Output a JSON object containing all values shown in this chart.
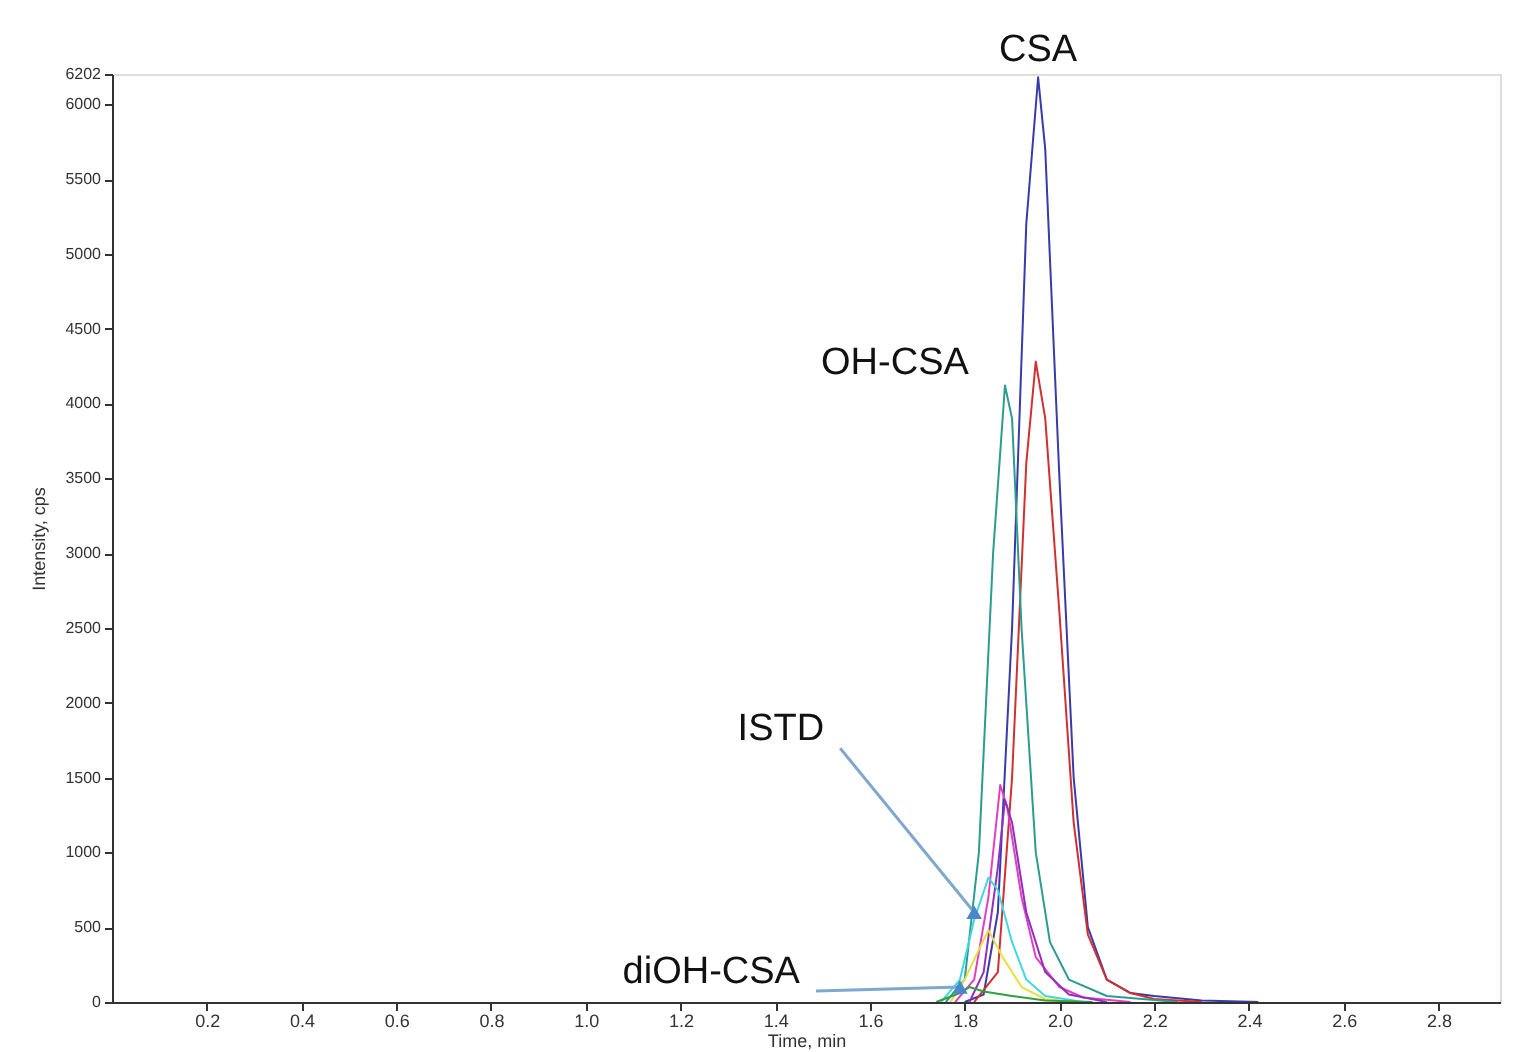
{
  "chart_data": {
    "type": "line",
    "xlabel": "Time, min",
    "ylabel": "Intensity, cps",
    "xlim": [
      0,
      2.93
    ],
    "ylim": [
      0,
      6202
    ],
    "xticks": [
      0.2,
      0.4,
      0.6,
      0.8,
      {
        "value": 1,
        "label": "1.0"
      },
      1.2,
      1.4,
      1.6,
      1.8,
      {
        "value": 2,
        "label": "2.0"
      },
      2.2,
      2.4,
      2.6,
      2.8
    ],
    "yticks": [
      0,
      500,
      1000,
      1500,
      2000,
      2500,
      3000,
      3500,
      4000,
      4500,
      5000,
      5500,
      6000,
      6202
    ],
    "grid": false,
    "marker": "none",
    "line_style": "solid",
    "series": [
      {
        "color": "#3a3aa8",
        "x": [
          1.8,
          1.84,
          1.87,
          1.9,
          1.93,
          1.955,
          1.97,
          2.0,
          2.03,
          2.06,
          2.1,
          2.15,
          2.2,
          2.3,
          2.42
        ],
        "values": [
          0,
          50,
          600,
          2500,
          5200,
          6180,
          5700,
          3500,
          1500,
          500,
          150,
          60,
          40,
          10,
          0
        ]
      },
      {
        "color": "#d03030",
        "x": [
          1.82,
          1.87,
          1.9,
          1.93,
          1.95,
          1.97,
          2.0,
          2.03,
          2.06,
          2.1,
          2.15,
          2.2,
          2.3
        ],
        "values": [
          0,
          200,
          1500,
          3600,
          4280,
          3900,
          2600,
          1200,
          450,
          150,
          60,
          20,
          0
        ]
      },
      {
        "color": "#2a9d8f",
        "x": [
          1.76,
          1.8,
          1.83,
          1.86,
          1.885,
          1.9,
          1.92,
          1.95,
          1.98,
          2.02,
          2.1,
          2.25
        ],
        "values": [
          0,
          150,
          1000,
          3000,
          4120,
          3900,
          2500,
          1000,
          400,
          150,
          40,
          0
        ]
      },
      {
        "color": "#e040c0",
        "x": [
          1.78,
          1.82,
          1.85,
          1.875,
          1.89,
          1.92,
          1.95,
          2.0,
          2.05,
          2.15
        ],
        "values": [
          0,
          150,
          700,
          1450,
          1300,
          700,
          300,
          100,
          30,
          0
        ]
      },
      {
        "color": "#9030c0",
        "x": [
          1.81,
          1.84,
          1.87,
          1.885,
          1.9,
          1.93,
          1.97,
          2.02,
          2.1
        ],
        "values": [
          0,
          200,
          900,
          1350,
          1200,
          600,
          200,
          50,
          0
        ]
      },
      {
        "color": "#40d8e0",
        "x": [
          1.75,
          1.79,
          1.82,
          1.85,
          1.87,
          1.9,
          1.93,
          1.97,
          2.05
        ],
        "values": [
          0,
          150,
          550,
          830,
          750,
          400,
          150,
          40,
          0
        ]
      },
      {
        "color": "#e8e040",
        "x": [
          1.77,
          1.8,
          1.83,
          1.85,
          1.88,
          1.92,
          1.97,
          2.03
        ],
        "values": [
          0,
          150,
          350,
          480,
          300,
          100,
          20,
          0
        ]
      },
      {
        "color": "#30a040",
        "x": [
          1.74,
          1.79,
          1.81,
          1.84,
          1.9,
          1.97,
          2.07
        ],
        "values": [
          0,
          60,
          100,
          70,
          40,
          10,
          0
        ]
      }
    ],
    "annotations": [
      {
        "text": "CSA",
        "x": 1.955,
        "y": 6180
      },
      {
        "text": "OH-CSA",
        "x": 1.885,
        "y": 4120
      },
      {
        "text": "ISTD",
        "x": 1.82,
        "y": 600
      },
      {
        "text": "diOH-CSA",
        "x": 1.79,
        "y": 100
      }
    ]
  }
}
